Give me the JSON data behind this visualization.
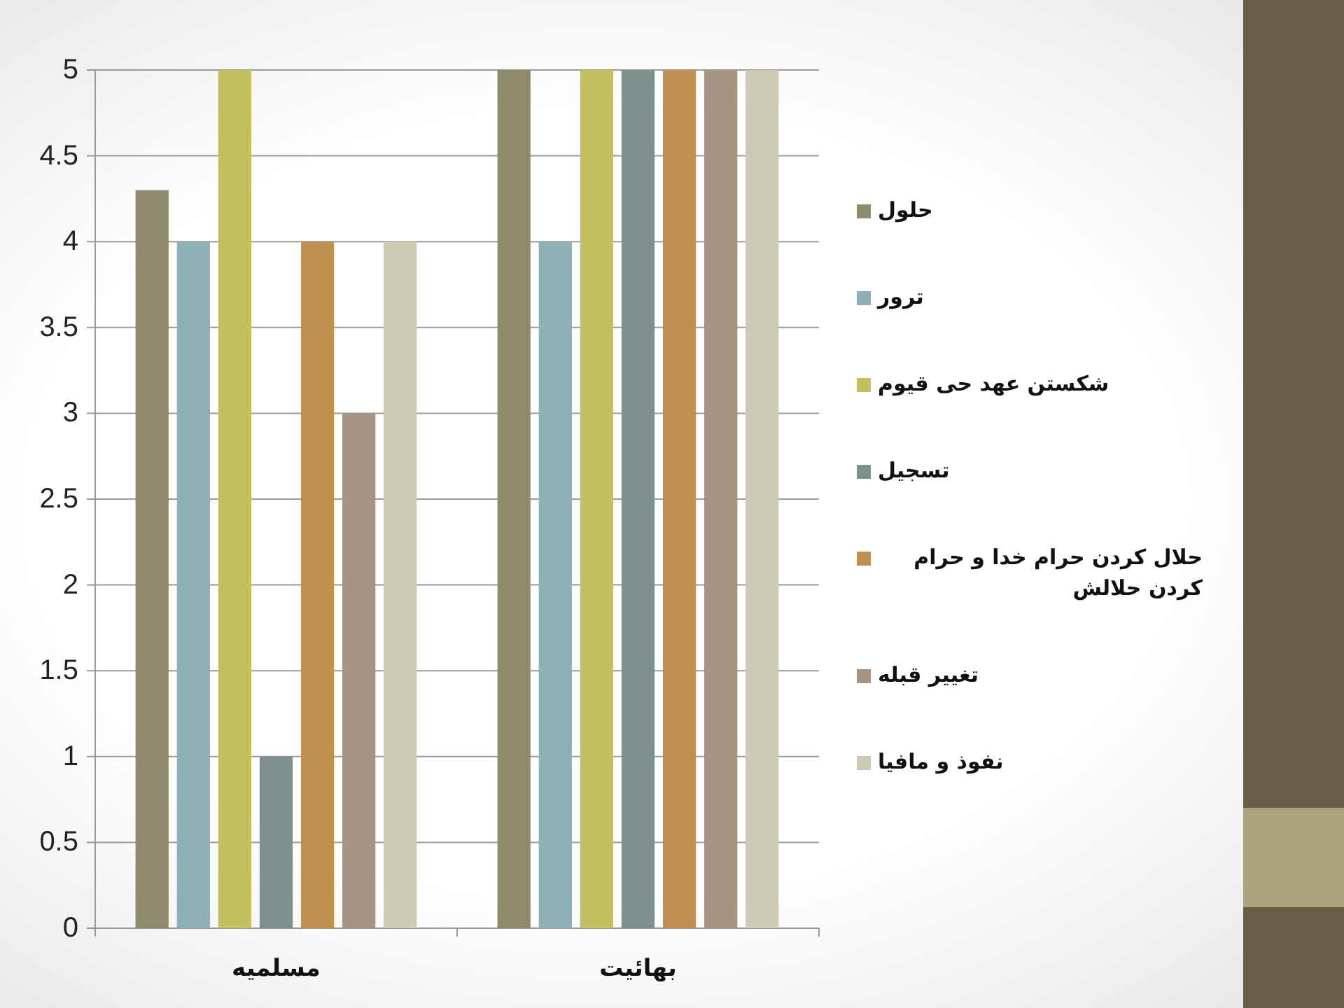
{
  "chart_data": {
    "type": "bar",
    "categories": [
      "مسلمیه",
      "بهائیت"
    ],
    "series": [
      {
        "name": "حلول",
        "color": "#8e8b6c",
        "values": [
          4.3,
          5
        ]
      },
      {
        "name": "ترور",
        "color": "#8fb1b5",
        "values": [
          4,
          4
        ]
      },
      {
        "name": "شکستن عهد حی قیوم",
        "color": "#c4c060",
        "values": [
          5,
          5
        ]
      },
      {
        "name": "تسجیل",
        "color": "#7f8f8d",
        "values": [
          1,
          5
        ]
      },
      {
        "name": "حلال کردن حرام خدا و حرام کردن حلالش",
        "color": "#c09050",
        "values": [
          4,
          5
        ]
      },
      {
        "name": "تغییر قبله",
        "color": "#a69382",
        "values": [
          3,
          5
        ]
      },
      {
        "name": "نفوذ و مافیا",
        "color": "#cdcbb3",
        "values": [
          4,
          5
        ]
      }
    ],
    "ylim": [
      0,
      5
    ],
    "yticks": [
      0,
      0.5,
      1,
      1.5,
      2,
      2.5,
      3,
      3.5,
      4,
      4.5,
      5
    ],
    "grid": "y",
    "legend": "right"
  }
}
